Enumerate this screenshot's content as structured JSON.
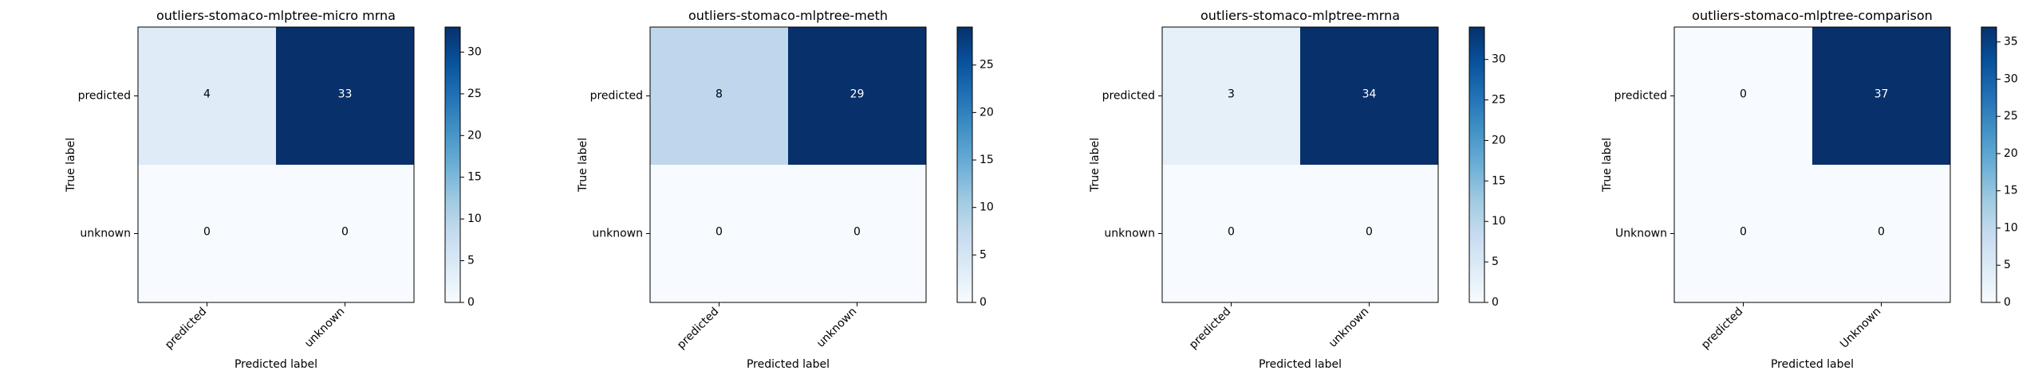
{
  "figure": {
    "background": "#ffffff"
  },
  "chart_data": [
    {
      "type": "heatmap",
      "title": "outliers-stomaco-mlptree-micro mrna",
      "xlabel": "Predicted label",
      "ylabel": "True label",
      "x_categories": [
        "predicted",
        "unknown"
      ],
      "y_categories": [
        "predicted",
        "unknown"
      ],
      "values": [
        [
          4,
          33
        ],
        [
          0,
          0
        ]
      ],
      "colorbar": {
        "min": 0,
        "max": 33,
        "ticks": [
          0,
          5,
          10,
          15,
          20,
          25,
          30
        ]
      },
      "colormap": "Blues"
    },
    {
      "type": "heatmap",
      "title": "outliers-stomaco-mlptree-meth",
      "xlabel": "Predicted label",
      "ylabel": "True label",
      "x_categories": [
        "predicted",
        "unknown"
      ],
      "y_categories": [
        "predicted",
        "unknown"
      ],
      "values": [
        [
          8,
          29
        ],
        [
          0,
          0
        ]
      ],
      "colorbar": {
        "min": 0,
        "max": 29,
        "ticks": [
          0,
          5,
          10,
          15,
          20,
          25
        ]
      },
      "colormap": "Blues"
    },
    {
      "type": "heatmap",
      "title": "outliers-stomaco-mlptree-mrna",
      "xlabel": "Predicted label",
      "ylabel": "True label",
      "x_categories": [
        "predicted",
        "unknown"
      ],
      "y_categories": [
        "predicted",
        "unknown"
      ],
      "values": [
        [
          3,
          34
        ],
        [
          0,
          0
        ]
      ],
      "colorbar": {
        "min": 0,
        "max": 34,
        "ticks": [
          0,
          5,
          10,
          15,
          20,
          25,
          30
        ]
      },
      "colormap": "Blues"
    },
    {
      "type": "heatmap",
      "title": "outliers-stomaco-mlptree-comparison",
      "xlabel": "Predicted label",
      "ylabel": "True label",
      "x_categories": [
        "predicted",
        "Unknown"
      ],
      "y_categories": [
        "predicted",
        "Unknown"
      ],
      "values": [
        [
          0,
          37
        ],
        [
          0,
          0
        ]
      ],
      "colorbar": {
        "min": 0,
        "max": 37,
        "ticks": [
          0,
          5,
          10,
          15,
          20,
          25,
          30,
          35
        ]
      },
      "colormap": "Blues"
    }
  ]
}
